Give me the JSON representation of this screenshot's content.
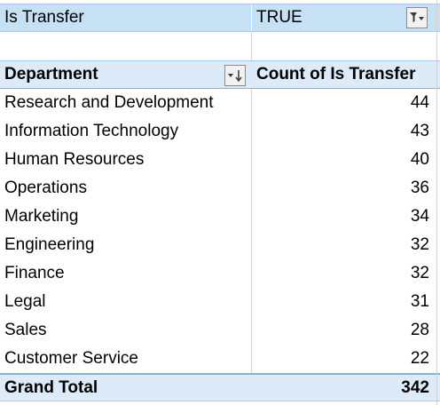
{
  "filter": {
    "label": "Is Transfer",
    "value": "TRUE",
    "icon": "filter-dropdown-icon"
  },
  "header": {
    "col1": "Department",
    "col2": "Count of Is Transfer",
    "sort_icon": "sort-descending-dropdown-icon"
  },
  "rows": [
    {
      "department": "Research and Development",
      "count": "44"
    },
    {
      "department": "Information Technology",
      "count": "43"
    },
    {
      "department": "Human Resources",
      "count": "40"
    },
    {
      "department": "Operations",
      "count": "36"
    },
    {
      "department": "Marketing",
      "count": "34"
    },
    {
      "department": "Engineering",
      "count": "32"
    },
    {
      "department": "Finance",
      "count": "32"
    },
    {
      "department": "Legal",
      "count": "31"
    },
    {
      "department": "Sales",
      "count": "28"
    },
    {
      "department": "Customer Service",
      "count": "22"
    }
  ],
  "total": {
    "label": "Grand Total",
    "count": "342"
  },
  "colors": {
    "filter_bg": "#c6e0f4",
    "header_bg": "#dcebf7",
    "border_blue": "#7fb2dd"
  }
}
